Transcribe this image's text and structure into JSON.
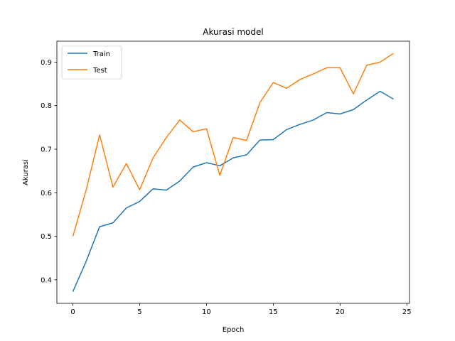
{
  "chart_data": {
    "type": "line",
    "title": "Akurasi model",
    "xlabel": "Epoch",
    "ylabel": "Akurasi",
    "xlim": [
      -1.2,
      25.2
    ],
    "ylim": [
      0.346,
      0.948
    ],
    "xticks": [
      0,
      5,
      10,
      15,
      20,
      25
    ],
    "yticks": [
      0.4,
      0.5,
      0.6,
      0.7,
      0.8,
      0.9
    ],
    "grid": false,
    "legend_position": "upper-left",
    "x": [
      0,
      1,
      2,
      3,
      4,
      5,
      6,
      7,
      8,
      9,
      10,
      11,
      12,
      13,
      14,
      15,
      16,
      17,
      18,
      19,
      20,
      21,
      22,
      23,
      24
    ],
    "series": [
      {
        "name": "Train",
        "color": "#1f77b4",
        "values": [
          0.373,
          0.443,
          0.522,
          0.531,
          0.565,
          0.58,
          0.609,
          0.606,
          0.627,
          0.659,
          0.669,
          0.662,
          0.68,
          0.687,
          0.721,
          0.722,
          0.745,
          0.757,
          0.767,
          0.784,
          0.781,
          0.791,
          0.813,
          0.833,
          0.815
        ]
      },
      {
        "name": "Test",
        "color": "#ff7f0e",
        "values": [
          0.5,
          0.607,
          0.733,
          0.613,
          0.667,
          0.607,
          0.68,
          0.727,
          0.767,
          0.74,
          0.747,
          0.64,
          0.727,
          0.72,
          0.807,
          0.853,
          0.84,
          0.86,
          0.873,
          0.887,
          0.887,
          0.827,
          0.893,
          0.9,
          0.92
        ]
      }
    ]
  }
}
